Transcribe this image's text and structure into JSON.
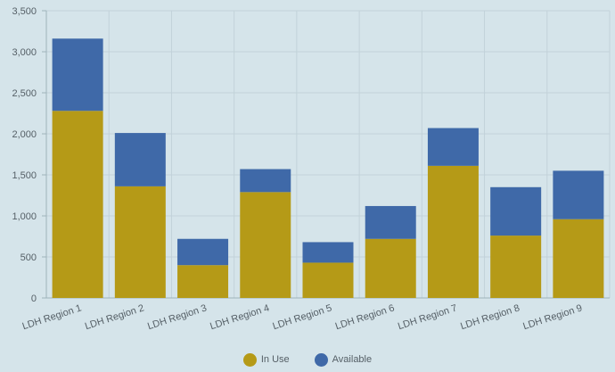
{
  "chart_data": {
    "type": "bar",
    "stacked": true,
    "categories": [
      "LDH Region 1",
      "LDH Region 2",
      "LDH Region 3",
      "LDH Region 4",
      "LDH Region 5",
      "LDH Region 6",
      "LDH Region 7",
      "LDH Region 8",
      "LDH Region 9"
    ],
    "series": [
      {
        "name": "In Use",
        "color": "#b59a17",
        "values": [
          2280,
          1360,
          400,
          1290,
          430,
          720,
          1610,
          760,
          960
        ]
      },
      {
        "name": "Available",
        "color": "#3f69a8",
        "values": [
          880,
          650,
          320,
          280,
          250,
          400,
          460,
          590,
          590
        ]
      }
    ],
    "ylim": [
      0,
      3500
    ],
    "yticks": [
      0,
      500,
      1000,
      1500,
      2000,
      2500,
      3000,
      3500
    ],
    "ytick_labels": [
      "0",
      "500",
      "1,000",
      "1,500",
      "2,000",
      "2,500",
      "3,000",
      "3,500"
    ],
    "title": "",
    "xlabel": "",
    "ylabel": "",
    "grid": true,
    "legend_position": "bottom-center"
  },
  "legend": {
    "in_use_label": "In Use",
    "available_label": "Available"
  }
}
